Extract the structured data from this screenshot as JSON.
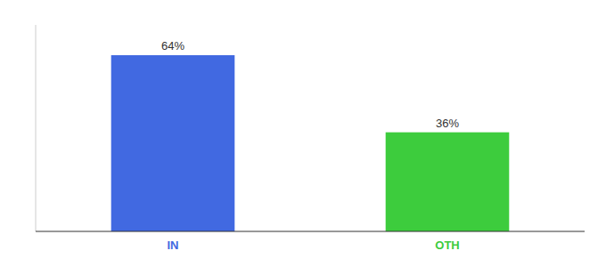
{
  "chart_data": {
    "type": "bar",
    "categories": [
      "IN",
      "OTH"
    ],
    "values": [
      64,
      36
    ],
    "value_labels": [
      "64%",
      "36%"
    ],
    "colors": [
      "#4169e1",
      "#3dcc3d"
    ],
    "ylim": [
      0,
      75
    ],
    "data_labels": true,
    "tick_labels": "x",
    "grid": false
  }
}
